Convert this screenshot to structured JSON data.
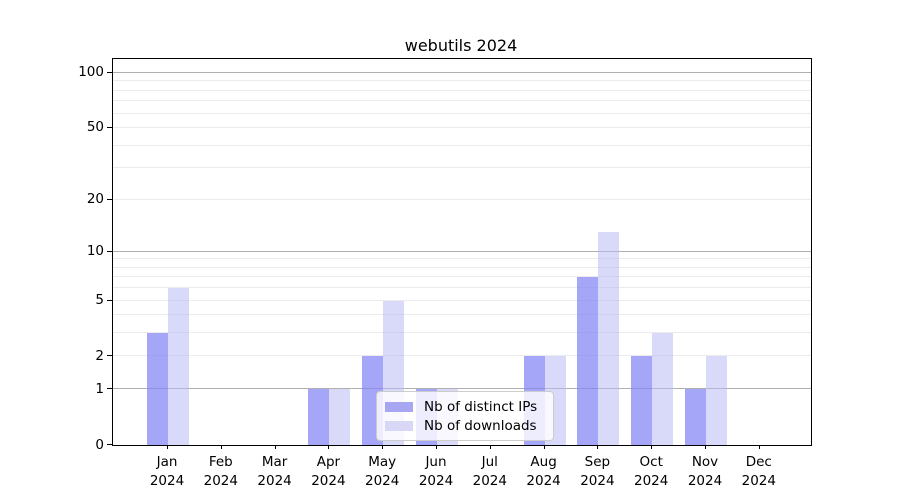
{
  "chart_data": {
    "type": "bar",
    "title": "webutils 2024",
    "categories": [
      "Jan",
      "Feb",
      "Mar",
      "Apr",
      "May",
      "Jun",
      "Jul",
      "Aug",
      "Sep",
      "Oct",
      "Nov",
      "Dec"
    ],
    "category_year": "2024",
    "series": [
      {
        "name": "Nb of distinct IPs",
        "key": "distinct-ips",
        "color": "rgba(132,132,245,0.72)",
        "swatch": "#a6a6f3",
        "values": [
          3,
          0,
          0,
          1,
          2,
          1,
          0,
          2,
          7,
          2,
          1,
          0
        ]
      },
      {
        "name": "Nb of downloads",
        "key": "downloads",
        "color": "rgba(186,186,244,0.55)",
        "swatch": "#d8d8f6",
        "values": [
          6,
          0,
          0,
          1,
          5,
          1,
          0,
          2,
          13,
          3,
          2,
          0
        ]
      }
    ],
    "yticks": [
      0,
      1,
      2,
      5,
      10,
      20,
      50,
      100
    ],
    "major_gridlines": [
      1,
      10,
      100
    ],
    "minor_gridlines": [
      2,
      3,
      4,
      5,
      6,
      7,
      8,
      9,
      20,
      30,
      40,
      50,
      60,
      70,
      80,
      90
    ],
    "scale": "log1p",
    "ylim": [
      0,
      119
    ],
    "grid": true,
    "legend_position": "lower center",
    "xlabel": "",
    "ylabel": ""
  },
  "colors": {
    "bar_distinct_ips": "#a6a6f3",
    "bar_downloads": "#d8d8f6",
    "grid_major": "#b0b0b0",
    "grid_minor": "#ebebeb",
    "text": "#000000",
    "background": "#ffffff"
  }
}
